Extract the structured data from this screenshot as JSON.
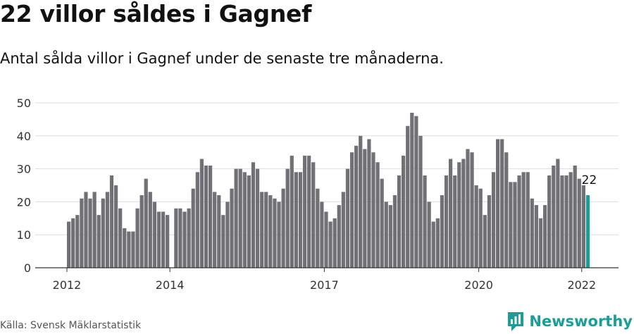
{
  "title": "22 villor såldes i Gagnef",
  "subtitle": "Antal sålda villor i Gagnef under de senaste tre månaderna.",
  "source": "Källa: Svensk Mäklarstatistik",
  "brand": {
    "name": "Newsworthy",
    "logo_icon": "newsworthy-logo-icon"
  },
  "colors": {
    "bar": "#717075",
    "highlight": "#1a9e97",
    "grid": "#dddddd",
    "axis": "#333333",
    "text": "#333333"
  },
  "chart_data": {
    "type": "bar",
    "title": "",
    "xlabel": "",
    "ylabel": "",
    "ylim": [
      0,
      50
    ],
    "yticks": [
      0,
      10,
      20,
      30,
      40,
      50
    ],
    "grid": true,
    "x_start": {
      "year": 2012,
      "month": 1
    },
    "xtick_labels": [
      {
        "label": "2012",
        "year": 2012
      },
      {
        "label": "2014",
        "year": 2014
      },
      {
        "label": "2017",
        "year": 2017
      },
      {
        "label": "2020",
        "year": 2020
      },
      {
        "label": "2022",
        "year": 2022
      }
    ],
    "values": [
      14,
      15,
      16,
      21,
      23,
      21,
      23,
      16,
      21,
      23,
      28,
      25,
      18,
      12,
      11,
      11,
      18,
      22,
      27,
      23,
      20,
      17,
      17,
      16,
      0,
      18,
      18,
      17,
      18,
      24,
      29,
      33,
      31,
      31,
      23,
      22,
      16,
      20,
      24,
      30,
      30,
      29,
      28,
      32,
      30,
      23,
      23,
      22,
      21,
      20,
      24,
      30,
      34,
      29,
      29,
      34,
      34,
      32,
      24,
      20,
      17,
      14,
      15,
      19,
      23,
      30,
      35,
      37,
      40,
      36,
      39,
      35,
      32,
      27,
      20,
      19,
      22,
      28,
      34,
      43,
      47,
      46,
      40,
      28,
      20,
      14,
      15,
      22,
      28,
      33,
      28,
      32,
      33,
      36,
      35,
      25,
      24,
      16,
      22,
      29,
      39,
      39,
      35,
      26,
      26,
      28,
      29,
      29,
      21,
      19,
      15,
      19,
      28,
      31,
      33,
      28,
      28,
      29,
      31,
      27,
      25,
      22
    ],
    "highlight_last": true,
    "annotation": {
      "label": "22",
      "index": 121
    }
  }
}
